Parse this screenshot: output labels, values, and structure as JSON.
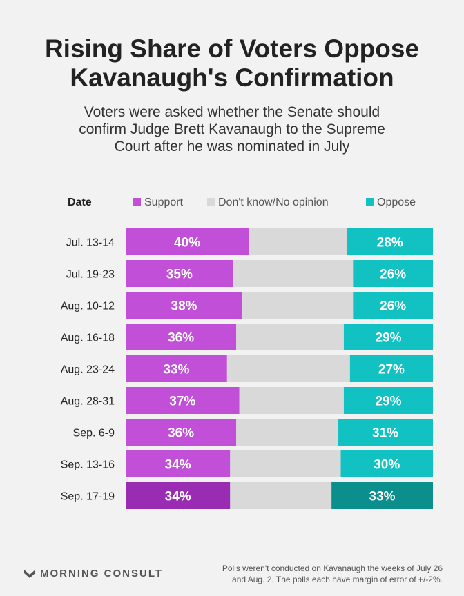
{
  "title_line1": "Rising Share of Voters Oppose",
  "title_line2": "Kavanaugh's Confirmation",
  "subtitle_line1": "Voters were asked whether the Senate should",
  "subtitle_line2": "confirm Judge Brett Kavanaugh to the Supreme",
  "subtitle_line3": "Court after he was nominated in July",
  "legend": {
    "date_header": "Date",
    "support": "Support",
    "dont_know": "Don't know/No opinion",
    "oppose": "Oppose"
  },
  "colors": {
    "support": "#c24fd8",
    "support_highlight": "#9a2cb3",
    "dont_know": "#d9d9d9",
    "oppose": "#12c2c2",
    "oppose_highlight": "#0a8f8c"
  },
  "chart_data": {
    "type": "bar",
    "stacked": true,
    "orientation": "horizontal",
    "categories": [
      "Jul. 13-14",
      "Jul. 19-23",
      "Aug. 10-12",
      "Aug. 16-18",
      "Aug. 23-24",
      "Aug. 28-31",
      "Sep. 6-9",
      "Sep. 13-16",
      "Sep. 17-19"
    ],
    "series": [
      {
        "name": "Support",
        "values": [
          40,
          35,
          38,
          36,
          33,
          37,
          36,
          34,
          34
        ]
      },
      {
        "name": "Don't know/No opinion",
        "values": [
          32,
          39,
          36,
          35,
          40,
          34,
          33,
          36,
          33
        ]
      },
      {
        "name": "Oppose",
        "values": [
          28,
          26,
          26,
          29,
          27,
          29,
          31,
          30,
          33
        ]
      }
    ],
    "value_labels": {
      "support": [
        "40%",
        "35%",
        "38%",
        "36%",
        "33%",
        "37%",
        "36%",
        "34%",
        "34%"
      ],
      "oppose": [
        "28%",
        "26%",
        "26%",
        "29%",
        "27%",
        "29%",
        "31%",
        "30%",
        "33%"
      ]
    },
    "highlighted_category": "Sep. 17-19",
    "xlim": [
      0,
      100
    ],
    "legend_position": "top"
  },
  "footer": {
    "logo_text": "MORNING CONSULT",
    "note_line1": "Polls weren't conducted on Kavanaugh the weeks of July 26",
    "note_line2": "and Aug. 2. The polls each have margin of error of +/-2%."
  }
}
